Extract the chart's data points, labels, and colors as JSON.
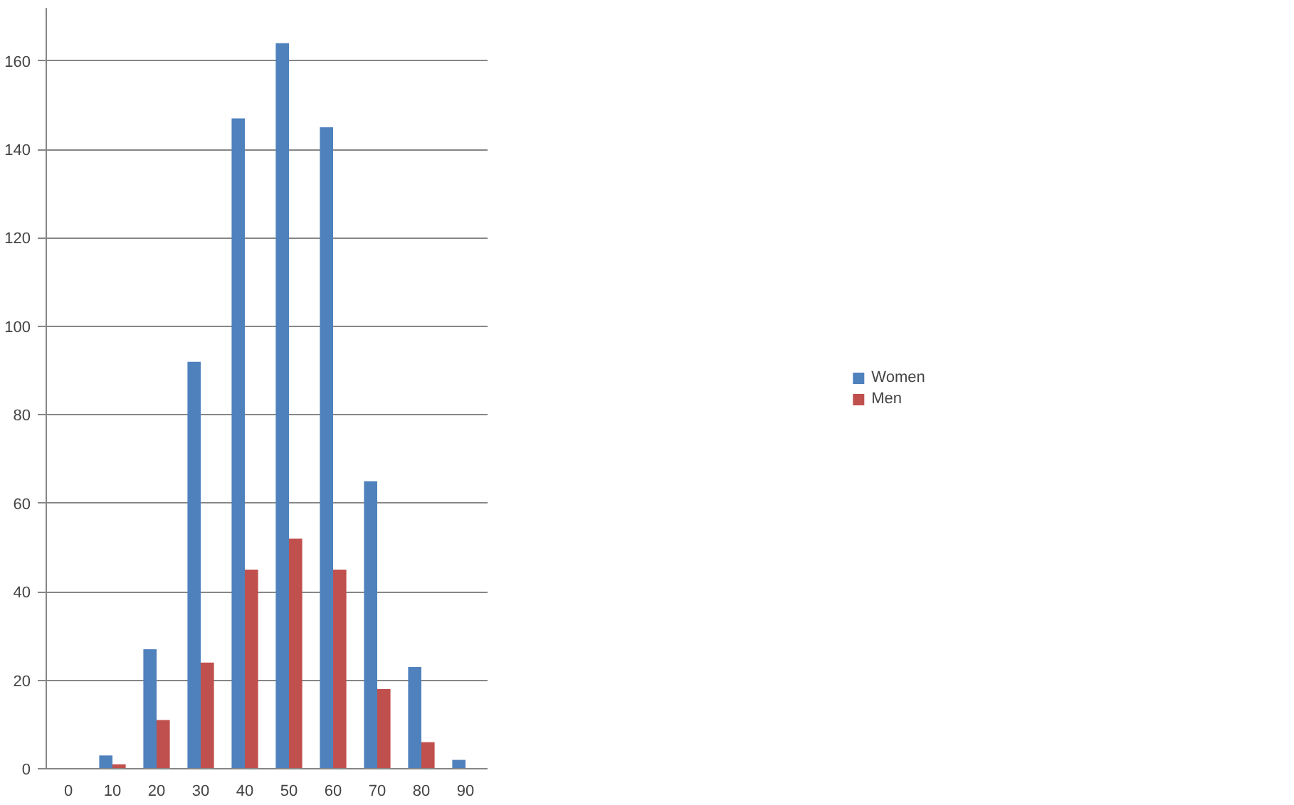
{
  "chart_data": {
    "type": "bar",
    "categories": [
      "0",
      "10",
      "20",
      "30",
      "40",
      "50",
      "60",
      "70",
      "80",
      "90"
    ],
    "series": [
      {
        "name": "Women",
        "color": "#4f81bd",
        "values": [
          0,
          3,
          27,
          92,
          147,
          164,
          145,
          65,
          23,
          2
        ]
      },
      {
        "name": "Men",
        "color": "#c0504d",
        "values": [
          0,
          1,
          11,
          24,
          45,
          52,
          45,
          18,
          6,
          0
        ]
      }
    ],
    "ylim": [
      0,
      172
    ],
    "yticks": [
      0,
      20,
      40,
      60,
      80,
      100,
      120,
      140,
      160
    ],
    "grid": "y",
    "legend": "right"
  }
}
